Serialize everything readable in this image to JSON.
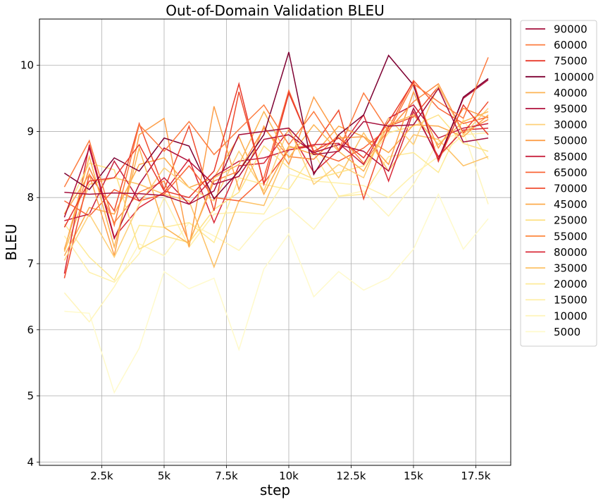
{
  "chart_data": {
    "type": "line",
    "title": "Out-of-Domain Validation BLEU",
    "xlabel": "step",
    "ylabel": "BLEU",
    "xlim": [
      0,
      18900
    ],
    "ylim": [
      3.95,
      10.7
    ],
    "x_ticks": [
      2500,
      5000,
      7500,
      10000,
      12500,
      15000,
      17500
    ],
    "x_tick_labels": [
      "2.5k",
      "5k",
      "7.5k",
      "10k",
      "12.5k",
      "15k",
      "17.5k"
    ],
    "y_ticks": [
      4,
      5,
      6,
      7,
      8,
      9,
      10
    ],
    "y_tick_labels": [
      "4",
      "5",
      "6",
      "7",
      "8",
      "9",
      "10"
    ],
    "grid": true,
    "legend_position": "outside-right",
    "x": [
      1000,
      2000,
      3000,
      4000,
      5000,
      6000,
      7000,
      8000,
      9000,
      10000,
      11000,
      12000,
      13000,
      14000,
      15000,
      16000,
      17000,
      18000
    ],
    "series": [
      {
        "name": "90000",
        "color": "#a50f3c",
        "values": [
          8.08,
          8.05,
          8.07,
          8.06,
          8.03,
          7.9,
          8.1,
          8.95,
          9.0,
          9.05,
          8.65,
          8.7,
          9.15,
          9.08,
          9.1,
          9.65,
          8.84,
          8.9
        ]
      },
      {
        "name": "60000",
        "color": "#fd7c3f",
        "values": [
          8.16,
          8.86,
          7.58,
          9.1,
          8.7,
          9.15,
          8.65,
          9.03,
          9.4,
          8.8,
          9.3,
          8.72,
          9.58,
          9.0,
          9.72,
          9.45,
          9.2,
          10.12
        ]
      },
      {
        "name": "75000",
        "color": "#e83a2c",
        "values": [
          7.55,
          8.25,
          8.3,
          8.8,
          8.1,
          8.0,
          8.4,
          9.72,
          8.2,
          9.58,
          8.7,
          8.9,
          8.6,
          9.15,
          9.75,
          8.55,
          9.4,
          8.95
        ]
      },
      {
        "name": "100000",
        "color": "#7e0032",
        "values": [
          8.37,
          8.12,
          8.6,
          8.4,
          8.9,
          8.78,
          7.98,
          8.4,
          8.95,
          10.2,
          8.35,
          8.95,
          9.25,
          10.15,
          9.7,
          8.55,
          9.52,
          9.8
        ]
      },
      {
        "name": "40000",
        "color": "#fcb555",
        "values": [
          7.2,
          8.62,
          7.25,
          8.75,
          7.55,
          7.3,
          8.3,
          8.5,
          9.3,
          8.6,
          9.1,
          8.7,
          8.4,
          9.1,
          9.25,
          8.8,
          9.15,
          9.3
        ]
      },
      {
        "name": "95000",
        "color": "#b0103b",
        "values": [
          7.7,
          8.75,
          7.38,
          8.2,
          8.75,
          8.55,
          8.2,
          8.32,
          8.88,
          8.95,
          8.68,
          8.8,
          8.7,
          8.4,
          9.35,
          8.58,
          9.5,
          9.78
        ]
      },
      {
        "name": "30000",
        "color": "#fed07a",
        "values": [
          7.05,
          7.75,
          7.1,
          7.9,
          8.45,
          8.15,
          7.95,
          8.7,
          8.1,
          9.05,
          8.2,
          8.5,
          8.3,
          9.2,
          8.8,
          9.7,
          8.95,
          9.35
        ]
      },
      {
        "name": "50000",
        "color": "#fd9f4a",
        "values": [
          7.75,
          8.35,
          7.12,
          8.95,
          9.2,
          7.25,
          9.38,
          8.12,
          9.08,
          8.5,
          9.52,
          8.9,
          8.92,
          8.5,
          9.6,
          8.75,
          9.35,
          9.2
        ]
      },
      {
        "name": "85000",
        "color": "#c8223f",
        "values": [
          7.65,
          7.75,
          8.55,
          7.95,
          8.3,
          7.9,
          8.32,
          8.55,
          8.6,
          8.72,
          8.8,
          8.82,
          8.5,
          9.2,
          9.4,
          8.9,
          9.05,
          9.12
        ]
      },
      {
        "name": "65000",
        "color": "#fa6537",
        "values": [
          7.95,
          7.72,
          8.12,
          7.95,
          8.05,
          8.48,
          8.0,
          7.95,
          8.3,
          9.62,
          8.68,
          8.55,
          8.75,
          9.05,
          9.77,
          9.35,
          9.12,
          9.22
        ]
      },
      {
        "name": "70000",
        "color": "#f04d30",
        "values": [
          6.78,
          8.35,
          7.8,
          9.12,
          8.12,
          9.08,
          7.8,
          9.6,
          8.22,
          8.72,
          8.78,
          9.32,
          7.98,
          9.08,
          9.22,
          9.68,
          8.98,
          9.45
        ]
      },
      {
        "name": "45000",
        "color": "#fdab4c",
        "values": [
          7.12,
          7.85,
          7.75,
          8.5,
          8.6,
          8.15,
          8.3,
          8.92,
          8.05,
          8.78,
          8.65,
          9.08,
          8.92,
          8.68,
          9.1,
          9.08,
          8.92,
          9.25
        ]
      },
      {
        "name": "25000",
        "color": "#fee287",
        "values": [
          7.75,
          8.52,
          8.42,
          7.22,
          7.42,
          7.32,
          7.82,
          8.08,
          8.78,
          8.45,
          8.28,
          8.38,
          8.48,
          8.98,
          9.08,
          9.25,
          8.82,
          8.7
        ]
      },
      {
        "name": "55000",
        "color": "#fd8c44",
        "values": [
          7.22,
          8.45,
          7.62,
          8.08,
          8.25,
          7.32,
          8.25,
          8.4,
          9.05,
          8.62,
          8.58,
          8.95,
          8.52,
          9.02,
          9.45,
          9.72,
          8.98,
          9.18
        ]
      },
      {
        "name": "80000",
        "color": "#d92a39",
        "values": [
          6.85,
          8.8,
          7.4,
          7.85,
          8.08,
          8.58,
          7.62,
          8.48,
          8.52,
          9.02,
          8.38,
          8.72,
          9.25,
          8.25,
          9.3,
          8.62,
          9.02,
          9.05
        ]
      },
      {
        "name": "35000",
        "color": "#fdc267",
        "values": [
          7.18,
          8.2,
          8.3,
          8.2,
          8.05,
          7.95,
          6.95,
          7.95,
          7.88,
          8.75,
          8.8,
          8.3,
          8.98,
          8.4,
          8.95,
          8.88,
          8.48,
          8.62
        ]
      },
      {
        "name": "20000",
        "color": "#feeb99",
        "values": [
          7.6,
          7.1,
          6.75,
          7.58,
          7.55,
          7.62,
          7.32,
          8.3,
          8.2,
          8.12,
          8.68,
          8.02,
          8.05,
          8.62,
          8.68,
          8.38,
          9.18,
          8.58
        ]
      },
      {
        "name": "15000",
        "color": "#fff1ae",
        "values": [
          7.42,
          6.87,
          6.72,
          7.15,
          8.0,
          7.25,
          7.75,
          7.78,
          7.75,
          8.35,
          8.25,
          8.22,
          8.18,
          8.0,
          8.35,
          8.62,
          8.95,
          8.98
        ]
      },
      {
        "name": "10000",
        "color": "#fff5bd",
        "values": [
          6.56,
          6.12,
          6.65,
          7.3,
          7.12,
          7.62,
          7.42,
          7.2,
          7.65,
          7.85,
          7.52,
          8.02,
          8.1,
          7.72,
          8.2,
          8.85,
          9.0,
          7.9
        ]
      },
      {
        "name": "5000",
        "color": "#fffacc",
        "values": [
          6.28,
          6.25,
          5.05,
          5.72,
          6.88,
          6.62,
          6.78,
          5.7,
          6.92,
          7.45,
          6.5,
          6.88,
          6.6,
          6.78,
          7.22,
          8.05,
          7.22,
          7.68
        ]
      }
    ]
  }
}
